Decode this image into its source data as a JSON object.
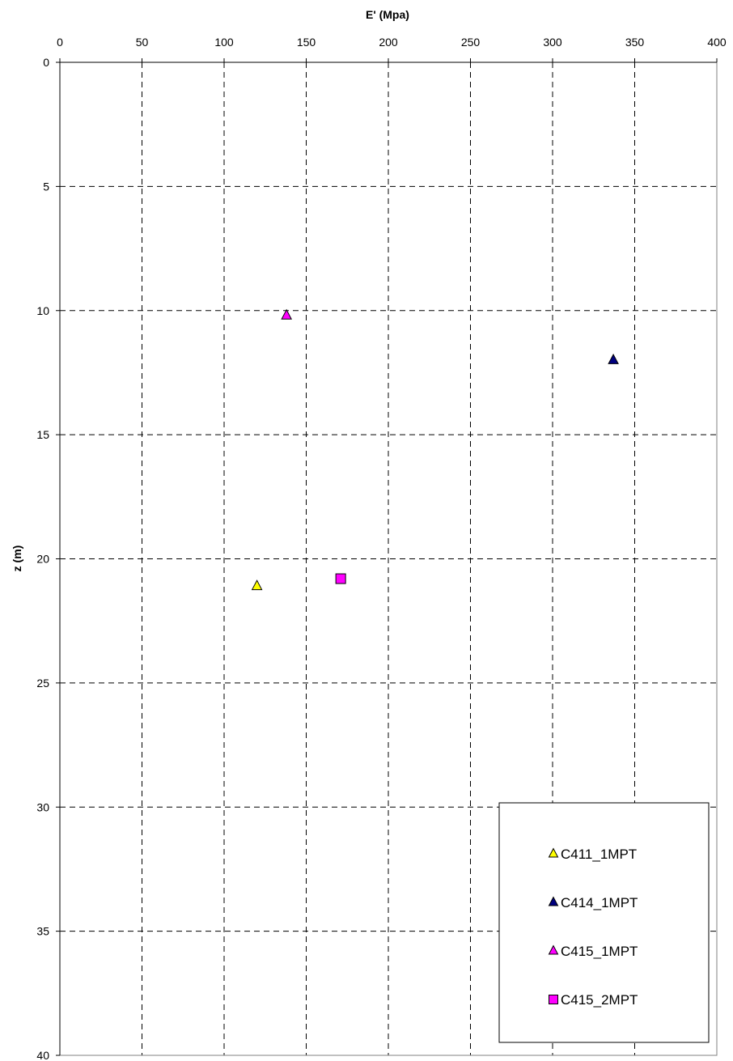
{
  "chart_data": {
    "type": "scatter",
    "xlabel": "E' (Mpa)",
    "ylabel": "z (m)",
    "xlim": [
      0,
      400
    ],
    "ylim": [
      0,
      40
    ],
    "y_inverted": true,
    "x_axis_position": "top",
    "x_ticks": [
      0,
      50,
      100,
      150,
      200,
      250,
      300,
      350,
      400
    ],
    "y_ticks": [
      0,
      5,
      10,
      15,
      20,
      25,
      30,
      35,
      40
    ],
    "grid": true,
    "legend_position": "bottom-right",
    "series": [
      {
        "name": "C411_1MPT",
        "marker": "triangle",
        "color": "#ffff00",
        "points": [
          {
            "x": 120,
            "y": 21.1
          }
        ]
      },
      {
        "name": "C414_1MPT",
        "marker": "triangle",
        "color": "#000080",
        "points": [
          {
            "x": 337,
            "y": 12.0
          }
        ]
      },
      {
        "name": "C415_1MPT",
        "marker": "triangle",
        "color": "#ff00ff",
        "points": [
          {
            "x": 138,
            "y": 10.2
          }
        ]
      },
      {
        "name": "C415_2MPT",
        "marker": "square",
        "color": "#ff00ff",
        "points": [
          {
            "x": 171,
            "y": 20.8
          }
        ]
      }
    ]
  }
}
